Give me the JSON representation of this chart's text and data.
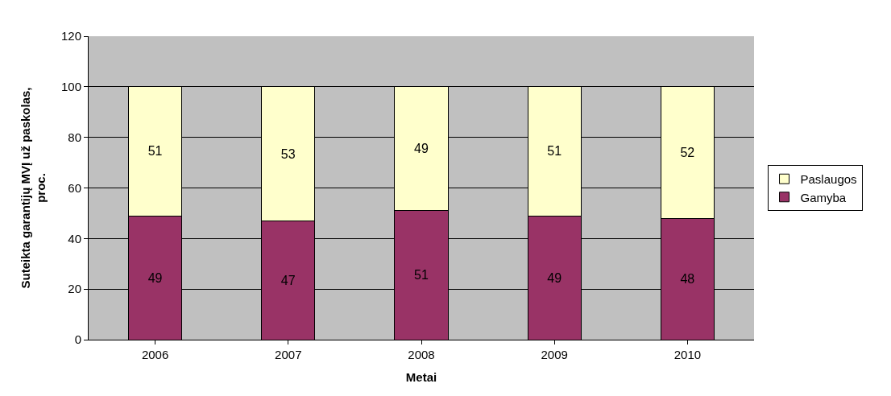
{
  "chart_data": {
    "type": "bar",
    "stacked": true,
    "xlabel": "Metai",
    "ylabel": "Suteikta garantijų MVĮ už paskolas, proc.",
    "categories": [
      "2006",
      "2007",
      "2008",
      "2009",
      "2010"
    ],
    "series": [
      {
        "name": "Gamyba",
        "color": "#993366",
        "values": [
          49,
          47,
          51,
          49,
          48
        ]
      },
      {
        "name": "Paslaugos",
        "color": "#ffffcc",
        "values": [
          51,
          53,
          49,
          51,
          52
        ]
      }
    ],
    "ylim": [
      0,
      120
    ],
    "yticks": [
      0,
      20,
      40,
      60,
      80,
      100,
      120
    ],
    "grid": "y",
    "legend": "right",
    "data_labels": true
  }
}
